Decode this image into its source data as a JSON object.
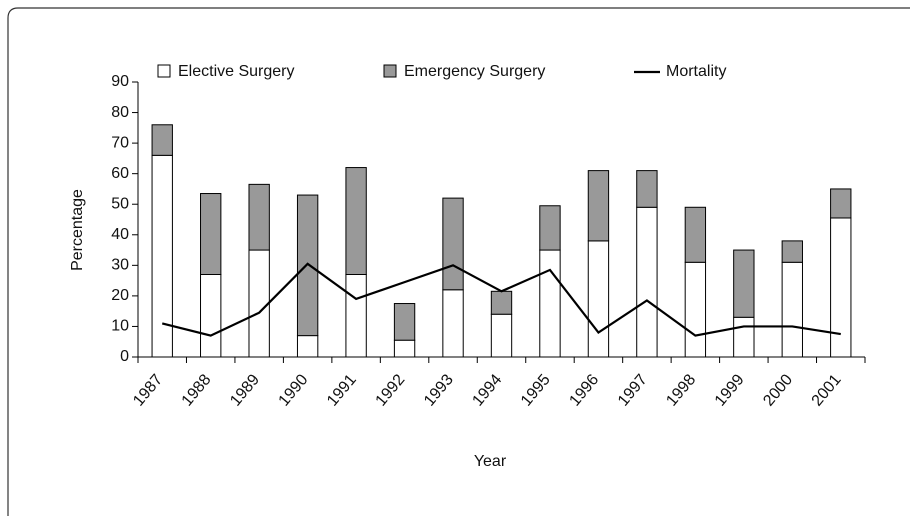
{
  "chart_data": {
    "type": "bar",
    "stacked": true,
    "x_label": "Year",
    "y_label": "Percentage",
    "categories": [
      "1987",
      "1988",
      "1989",
      "1990",
      "1991",
      "1992",
      "1993",
      "1994",
      "1995",
      "1996",
      "1997",
      "1998",
      "1999",
      "2000",
      "2001"
    ],
    "series": [
      {
        "name": "Elective Surgery",
        "color": "#ffffff",
        "values": [
          66,
          27,
          35,
          7,
          27,
          5.5,
          22,
          14,
          35,
          38,
          49,
          31,
          13,
          31,
          45.5
        ]
      },
      {
        "name": "Emergency Surgery",
        "color": "#999999",
        "values": [
          10,
          26.5,
          21.5,
          46,
          35,
          12,
          30,
          7.5,
          14.5,
          23,
          12,
          18,
          22,
          7,
          9.5
        ]
      },
      {
        "name": "Mortality",
        "type": "line",
        "color": "#000000",
        "values": [
          11,
          7,
          14.5,
          30.5,
          19,
          24.5,
          30,
          21.5,
          28.5,
          8,
          18.5,
          7,
          10,
          10,
          7.5
        ]
      }
    ],
    "ylim": [
      0,
      90
    ],
    "yticks": [
      0,
      10,
      20,
      30,
      40,
      50,
      60,
      70,
      80,
      90
    ],
    "grid": false,
    "legend": "top"
  }
}
